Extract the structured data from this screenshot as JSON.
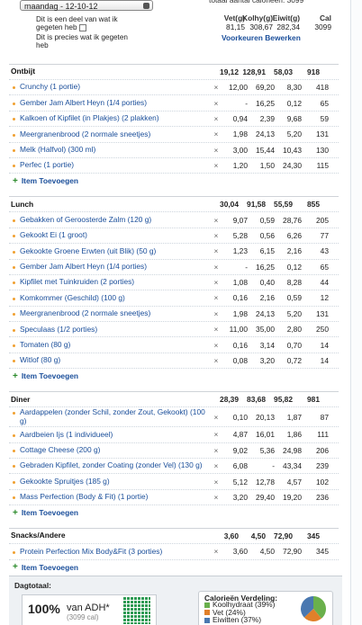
{
  "header": {
    "date": "maandag - 12-10-12",
    "option_partial": "Dit is een deel van wat ik gegeten heb",
    "option_exact": "Dit is precies wat ik gegeten heb",
    "total_cut": "totaal aantal calorieën: 3099",
    "columns": [
      {
        "label": "Vet(g)",
        "value": "81,15"
      },
      {
        "label": "Kolhy(g)",
        "value": "308,67"
      },
      {
        "label": "Eiwit(g)",
        "value": "282,34"
      },
      {
        "label": "Cal",
        "value": "3099"
      }
    ],
    "preferences": "Voorkeuren Bewerken"
  },
  "meals": [
    {
      "name": "Ontbijt",
      "totals": [
        "19,12",
        "128,91",
        "58,03",
        "918"
      ],
      "items": [
        {
          "name": "Crunchy (1 portie)",
          "values": [
            "12,00",
            "69,20",
            "8,30",
            "418"
          ]
        },
        {
          "name": "Gember Jam Albert Heyn (1/4 porties)",
          "values": [
            "-",
            "16,25",
            "0,12",
            "65"
          ]
        },
        {
          "name": "Kalkoen of Kipfilet (in Plakjes) (2 plakken)",
          "values": [
            "0,94",
            "2,39",
            "9,68",
            "59"
          ]
        },
        {
          "name": "Meergranenbrood (2 normale sneetjes)",
          "values": [
            "1,98",
            "24,13",
            "5,20",
            "131"
          ]
        },
        {
          "name": "Melk (Halfvol) (300 ml)",
          "values": [
            "3,00",
            "15,44",
            "10,43",
            "130"
          ]
        },
        {
          "name": "Perfec (1 portie)",
          "values": [
            "1,20",
            "1,50",
            "24,30",
            "115"
          ]
        }
      ],
      "add": "Item Toevoegen"
    },
    {
      "name": "Lunch",
      "totals": [
        "30,04",
        "91,58",
        "55,59",
        "855"
      ],
      "items": [
        {
          "name": "Gebakken of Geroosterde Zalm (120 g)",
          "values": [
            "9,07",
            "0,59",
            "28,76",
            "205"
          ]
        },
        {
          "name": "Gekookt Ei (1 groot)",
          "values": [
            "5,28",
            "0,56",
            "6,26",
            "77"
          ]
        },
        {
          "name": "Gekookte Groene Erwten (uit Blik) (50 g)",
          "values": [
            "1,23",
            "6,15",
            "2,16",
            "43"
          ]
        },
        {
          "name": "Gember Jam Albert Heyn (1/4 porties)",
          "values": [
            "-",
            "16,25",
            "0,12",
            "65"
          ]
        },
        {
          "name": "Kipfilet met Tuinkruiden (2 porties)",
          "values": [
            "1,08",
            "0,40",
            "8,28",
            "44"
          ]
        },
        {
          "name": "Komkommer (Geschild) (100 g)",
          "values": [
            "0,16",
            "2,16",
            "0,59",
            "12"
          ]
        },
        {
          "name": "Meergranenbrood (2 normale sneetjes)",
          "values": [
            "1,98",
            "24,13",
            "5,20",
            "131"
          ]
        },
        {
          "name": "Speculaas (1/2 porties)",
          "values": [
            "11,00",
            "35,00",
            "2,80",
            "250"
          ]
        },
        {
          "name": "Tomaten (80 g)",
          "values": [
            "0,16",
            "3,14",
            "0,70",
            "14"
          ]
        },
        {
          "name": "Witlof (80 g)",
          "values": [
            "0,08",
            "3,20",
            "0,72",
            "14"
          ]
        }
      ],
      "add": "Item Toevoegen"
    },
    {
      "name": "Diner",
      "totals": [
        "28,39",
        "83,68",
        "95,82",
        "981"
      ],
      "items": [
        {
          "name": "Aardappelen (zonder Schil, zonder Zout, Gekookt) (100 g)",
          "values": [
            "0,10",
            "20,13",
            "1,87",
            "87"
          ]
        },
        {
          "name": "Aardbeien Ijs (1 individueel)",
          "values": [
            "4,87",
            "16,01",
            "1,86",
            "111"
          ]
        },
        {
          "name": "Cottage Cheese (200 g)",
          "values": [
            "9,02",
            "5,36",
            "24,98",
            "206"
          ]
        },
        {
          "name": "Gebraden Kipfilet, zonder Coating (zonder Vel) (130 g)",
          "values": [
            "6,08",
            "-",
            "43,34",
            "239"
          ]
        },
        {
          "name": "Gekookte Spruitjes (185 g)",
          "values": [
            "5,12",
            "12,78",
            "4,57",
            "102"
          ]
        },
        {
          "name": "Mass Perfection (Body & Fit) (1 portie)",
          "values": [
            "3,20",
            "29,40",
            "19,20",
            "236"
          ]
        }
      ],
      "add": "Item Toevoegen"
    },
    {
      "name": "Snacks/Andere",
      "totals": [
        "3,60",
        "4,50",
        "72,90",
        "345"
      ],
      "items": [
        {
          "name": "Protein Perfection Mix Body&Fit (3 porties)",
          "values": [
            "3,60",
            "4,50",
            "72,90",
            "345"
          ]
        }
      ],
      "add": "Item Toevoegen"
    }
  ],
  "remove_icon": "×",
  "day_total": {
    "label": "Dagtotaal:",
    "percent": "100%",
    "of": "van ADH*",
    "calories": "(3099 cal)",
    "distribution": {
      "title": "Calorieën Verdeling:",
      "legend": [
        "Koolhydraat (39%)",
        "Vet (24%)",
        "Eiwitten (37%)"
      ],
      "shares": [
        39,
        24,
        37
      ],
      "colors": [
        "#6ab04c",
        "#e0802a",
        "#4a78b0"
      ]
    }
  }
}
